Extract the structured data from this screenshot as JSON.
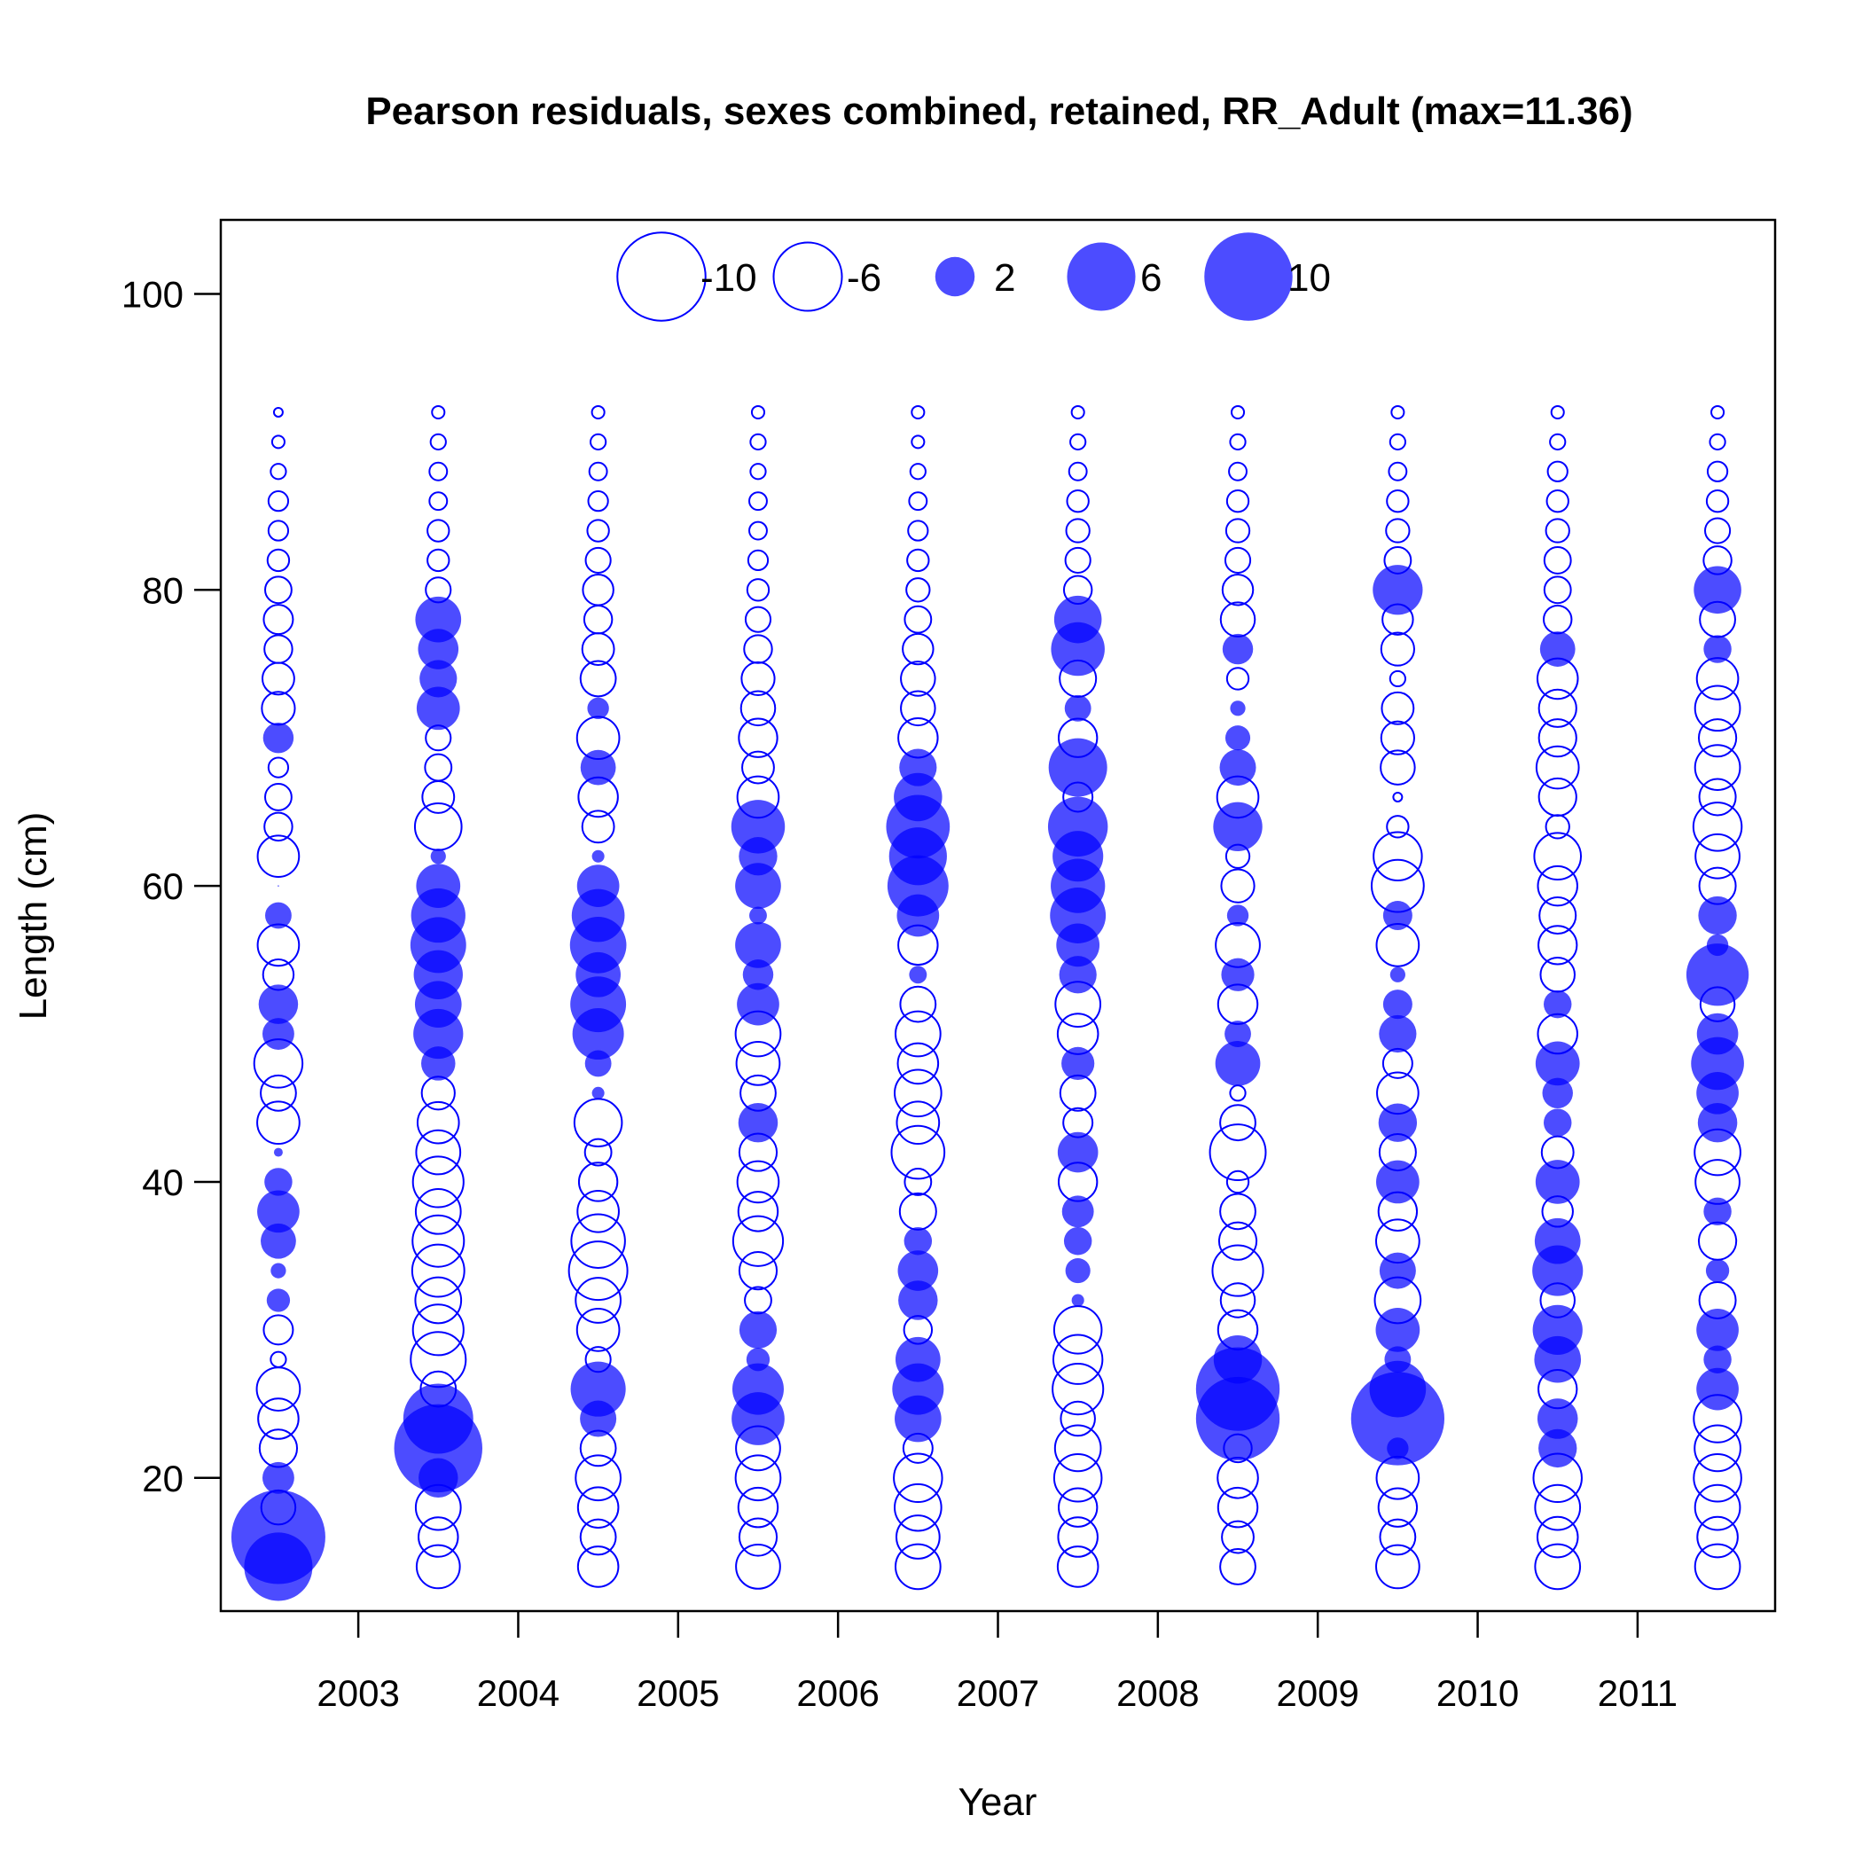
{
  "chart_data": {
    "type": "bubble",
    "title": "Pearson residuals, sexes combined, retained, RR_Adult (max=11.36)",
    "xlabel": "Year",
    "ylabel": "Length (cm)",
    "xlim": [
      2002.14,
      2011.86
    ],
    "ylim": [
      11,
      105
    ],
    "x_ticks": [
      2003,
      2004,
      2005,
      2006,
      2007,
      2008,
      2009,
      2010,
      2011
    ],
    "y_ticks": [
      20,
      40,
      60,
      80,
      100
    ],
    "max_residual": 11.36,
    "positive_color": "#0000ff",
    "negative_color": "#0000ff",
    "fill_opacity": 0.7,
    "legend": {
      "position": "top",
      "entries": [
        {
          "value": -10,
          "label": "-10"
        },
        {
          "value": -6,
          "label": "-6"
        },
        {
          "value": 2,
          "label": "2"
        },
        {
          "value": 6,
          "label": "6"
        },
        {
          "value": 10,
          "label": "10"
        }
      ]
    },
    "lengths": [
      14,
      16,
      18,
      20,
      22,
      24,
      26,
      28,
      30,
      32,
      34,
      36,
      38,
      40,
      42,
      44,
      46,
      48,
      50,
      52,
      54,
      56,
      58,
      60,
      62,
      64,
      66,
      68,
      70,
      72,
      74,
      76,
      78,
      80,
      82,
      84,
      86,
      88,
      90,
      92
    ],
    "series": [
      {
        "x": 2002.5,
        "residuals": [
          6.0,
          11.36,
          -1.5,
          1.3,
          -1.8,
          -2.1,
          -2.4,
          -0.3,
          -1.1,
          0.7,
          0.3,
          1.6,
          2.3,
          1.0,
          0.1,
          -2.3,
          -1.6,
          -3.0,
          1.3,
          2.0,
          -1.2,
          -2.2,
          0.9,
          0.0,
          -2.2,
          -1.0,
          -0.9,
          -0.5,
          1.2,
          -1.4,
          -1.3,
          -1.0,
          -1.1,
          -0.9,
          -0.6,
          -0.5,
          -0.5,
          -0.3,
          -0.2,
          -0.1
        ]
      },
      {
        "x": 2003.5,
        "residuals": [
          -2.4,
          -2.0,
          -2.6,
          2.0,
          10.0,
          6.3,
          -1.6,
          -3.9,
          -3.3,
          -2.7,
          -3.5,
          -3.4,
          -2.6,
          -3.3,
          -2.5,
          -2.2,
          -1.4,
          1.5,
          3.2,
          2.8,
          3.1,
          4.0,
          3.8,
          2.5,
          0.3,
          -2.8,
          -1.3,
          -0.9,
          -0.8,
          2.4,
          1.8,
          2.1,
          2.7,
          -0.8,
          -0.6,
          -0.6,
          -0.4,
          -0.4,
          -0.3,
          -0.2
        ]
      },
      {
        "x": 2004.5,
        "residuals": [
          -2.1,
          -1.6,
          -2.1,
          -2.6,
          -1.6,
          1.7,
          3.9,
          -0.8,
          -2.3,
          -2.6,
          -4.4,
          -3.7,
          -2.2,
          -1.9,
          -0.9,
          -2.9,
          0.2,
          0.9,
          3.4,
          4.0,
          2.6,
          4.1,
          3.6,
          2.3,
          0.2,
          -1.3,
          -2.0,
          1.6,
          -2.3,
          0.6,
          -1.6,
          -1.3,
          -1.0,
          -1.2,
          -0.8,
          -0.6,
          -0.5,
          -0.4,
          -0.3,
          -0.2
        ]
      },
      {
        "x": 2005.5,
        "residuals": [
          -2.5,
          -1.8,
          -2.0,
          -2.6,
          -2.5,
          3.6,
          3.4,
          0.7,
          1.8,
          -0.9,
          -1.8,
          -3.2,
          -2.0,
          -2.2,
          -1.8,
          2.0,
          -1.6,
          -2.4,
          -2.6,
          2.3,
          1.2,
          2.7,
          0.4,
          2.7,
          1.9,
          3.7,
          -2.2,
          -1.3,
          -1.9,
          -1.5,
          -1.4,
          -1.0,
          -0.8,
          -0.6,
          -0.5,
          -0.4,
          -0.4,
          -0.3,
          -0.3,
          -0.2
        ]
      },
      {
        "x": 2006.5,
        "residuals": [
          -2.6,
          -2.4,
          -2.8,
          -3.0,
          -1.1,
          2.8,
          3.4,
          2.6,
          -1.0,
          2.0,
          2.1,
          1.0,
          -1.7,
          -0.9,
          -3.6,
          -2.3,
          -2.8,
          -2.1,
          -2.6,
          -1.6,
          0.4,
          -2.0,
          2.3,
          4.8,
          4.3,
          5.2,
          3.0,
          1.8,
          -2.0,
          -1.5,
          -1.5,
          -1.2,
          -0.9,
          -0.7,
          -0.6,
          -0.5,
          -0.4,
          -0.3,
          -0.2,
          -0.2
        ]
      },
      {
        "x": 2007.5,
        "residuals": [
          -2.1,
          -2.0,
          -1.9,
          -2.9,
          -2.7,
          -1.5,
          -3.3,
          -3.1,
          -2.9,
          0.2,
          0.8,
          1.0,
          1.3,
          -1.9,
          2.1,
          -1.1,
          -1.6,
          1.4,
          -2.1,
          -2.6,
          1.8,
          2.4,
          4.0,
          3.8,
          3.3,
          4.6,
          -1.1,
          4.4,
          -1.9,
          0.9,
          -1.7,
          3.7,
          2.9,
          -1.0,
          -0.8,
          -0.7,
          -0.6,
          -0.4,
          -0.3,
          -0.2
        ]
      },
      {
        "x": 2008.5,
        "residuals": [
          -1.6,
          -1.3,
          -2.0,
          -2.1,
          -1.0,
          9.0,
          9.0,
          3.0,
          -2.0,
          -1.5,
          -3.3,
          -1.8,
          -1.6,
          -0.6,
          -4.0,
          -1.6,
          -0.3,
          2.6,
          0.9,
          -2.0,
          1.4,
          -2.5,
          0.6,
          -1.4,
          -0.7,
          3.1,
          -2.2,
          1.7,
          0.8,
          0.3,
          -0.6,
          1.2,
          -1.5,
          -1.2,
          -0.8,
          -0.7,
          -0.6,
          -0.4,
          -0.3,
          -0.2
        ]
      },
      {
        "x": 2009.5,
        "residuals": [
          -2.4,
          -1.6,
          -1.9,
          -2.3,
          0.6,
          11.2,
          4.1,
          0.9,
          2.5,
          -2.7,
          1.7,
          -2.4,
          -1.9,
          2.4,
          -1.7,
          1.9,
          -2.2,
          -1.1,
          1.8,
          1.1,
          0.3,
          -2.3,
          1.1,
          -3.5,
          -3.0,
          -0.6,
          -0.1,
          -1.5,
          -1.4,
          -1.3,
          -0.3,
          -1.4,
          -1.2,
          3.2,
          -0.9,
          -0.7,
          -0.6,
          -0.4,
          -0.3,
          -0.2
        ]
      },
      {
        "x": 2010.5,
        "residuals": [
          -2.6,
          -2.1,
          -2.6,
          -3.0,
          1.9,
          2.1,
          -1.9,
          2.8,
          3.2,
          -1.5,
          3.3,
          2.7,
          -1.2,
          2.5,
          -1.3,
          1.0,
          1.2,
          2.5,
          -2.0,
          1.0,
          -1.5,
          -1.9,
          -1.7,
          -2.0,
          -2.8,
          -0.7,
          -1.8,
          -2.3,
          -1.8,
          -1.8,
          -2.1,
          1.6,
          -1.0,
          -0.9,
          -0.9,
          -0.7,
          -0.6,
          -0.5,
          -0.3,
          -0.2
        ]
      },
      {
        "x": 2011.5,
        "residuals": [
          -2.6,
          -2.1,
          -2.6,
          -2.9,
          -2.7,
          -2.9,
          2.3,
          1.0,
          2.3,
          -1.7,
          0.7,
          -1.8,
          1.0,
          -2.5,
          -2.7,
          2.0,
          2.3,
          3.6,
          2.2,
          -1.5,
          5.0,
          0.6,
          1.9,
          -1.7,
          -2.5,
          -3.0,
          -1.7,
          -2.6,
          -1.8,
          -2.6,
          -2.2,
          1.0,
          -1.6,
          2.9,
          -1.0,
          -0.8,
          -0.6,
          -0.5,
          -0.3,
          -0.2
        ]
      }
    ]
  }
}
